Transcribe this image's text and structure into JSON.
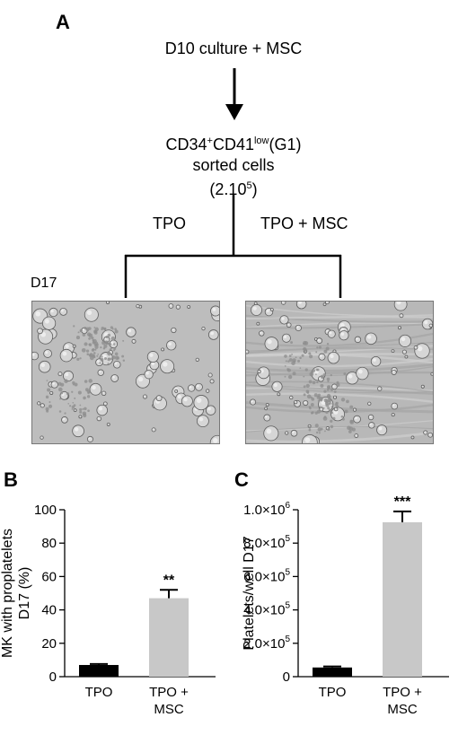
{
  "panel_a": {
    "letter": "A",
    "step1": "D10 culture + MSC",
    "step2_line1_parts": [
      "CD34",
      "+",
      "CD41",
      "low",
      "(G1)"
    ],
    "step2_line2": "sorted cells",
    "step2_line3_base": "(2.10",
    "step2_line3_exp": "5",
    "step2_line3_end": ")",
    "branch_left": "TPO",
    "branch_right": "TPO + MSC",
    "day_label": "D17"
  },
  "panel_b": {
    "letter": "B"
  },
  "panel_c": {
    "letter": "C"
  },
  "colors": {
    "black_bar": "#000000",
    "gray_bar": "#c8c8c8"
  },
  "chart_data": [
    {
      "type": "bar",
      "categories": [
        [
          "TPO"
        ],
        [
          "TPO +",
          "MSC"
        ]
      ],
      "values": [
        7,
        47
      ],
      "errors": [
        0.6,
        5
      ],
      "colors": [
        "#000000",
        "#c8c8c8"
      ],
      "ylabel_lines": [
        "MK with proplatelets",
        "D17 (%)"
      ],
      "ylim": [
        0,
        100
      ],
      "yticks": [
        0,
        20,
        40,
        60,
        80,
        100
      ],
      "ytick_labels": [
        "0",
        "20",
        "40",
        "60",
        "80",
        "100"
      ],
      "significance": "**"
    },
    {
      "type": "bar",
      "categories": [
        [
          "TPO"
        ],
        [
          "TPO +",
          "MSC"
        ]
      ],
      "values": [
        55000,
        925000
      ],
      "errors": [
        6000,
        65000
      ],
      "colors": [
        "#000000",
        "#c8c8c8"
      ],
      "ylabel_lines": [
        "Platelets/well D17"
      ],
      "ylim": [
        0,
        1000000
      ],
      "yticks": [
        0,
        200000,
        400000,
        600000,
        800000,
        1000000
      ],
      "ytick_labels": [
        [
          "0",
          "",
          ""
        ],
        [
          "2.0×10",
          "5"
        ],
        [
          "4.0×10",
          "5"
        ],
        [
          "6.0×10",
          "5"
        ],
        [
          "8.0×10",
          "5"
        ],
        [
          "1.0×10",
          "6"
        ]
      ],
      "significance": "***"
    }
  ]
}
